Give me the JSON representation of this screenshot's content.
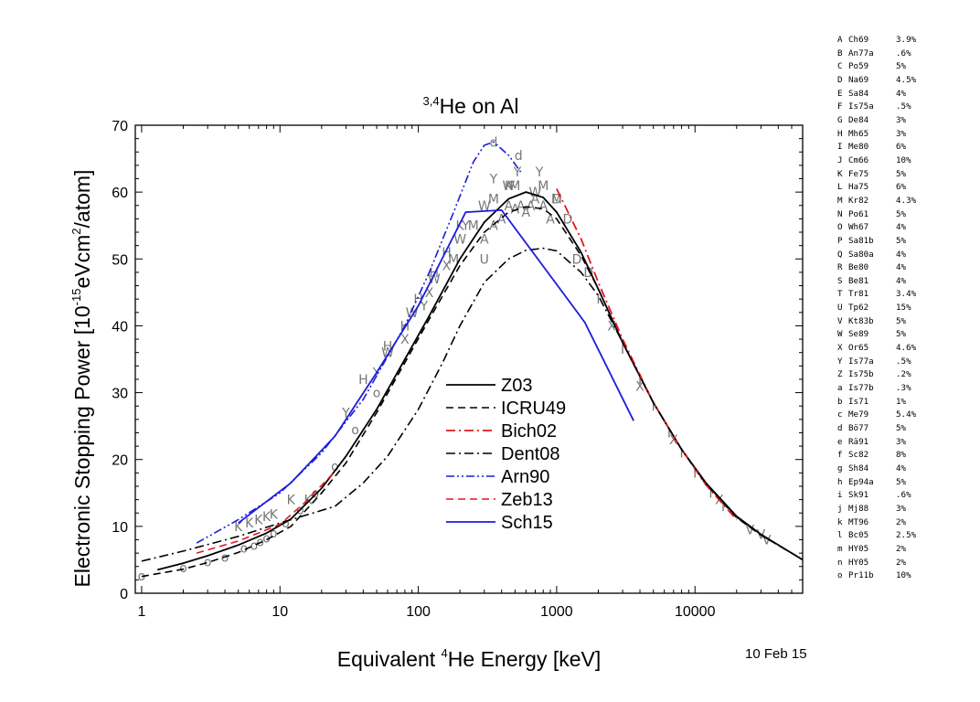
{
  "chart_data": {
    "type": "line",
    "title": {
      "prefix": "3,4",
      "main": "He on Al"
    },
    "xlabel": {
      "pre": "Equivalent ",
      "sup": "4",
      "post": "He Energy [keV]"
    },
    "ylabel": {
      "pre": "Electronic Stopping Power [10",
      "sup1": "-15",
      "mid": "eVcm",
      "sup2": "2",
      "post": "/atom]"
    },
    "x_scale": "log",
    "xlim": [
      0.9,
      60000
    ],
    "ylim": [
      0,
      70
    ],
    "x_ticks": [
      {
        "v": 1,
        "label": "1"
      },
      {
        "v": 10,
        "label": "10"
      },
      {
        "v": 100,
        "label": "100"
      },
      {
        "v": 1000,
        "label": "1000"
      },
      {
        "v": 10000,
        "label": "10000"
      }
    ],
    "y_ticks": [
      {
        "v": 0,
        "label": "0"
      },
      {
        "v": 10,
        "label": "10"
      },
      {
        "v": 20,
        "label": "20"
      },
      {
        "v": 30,
        "label": "30"
      },
      {
        "v": 40,
        "label": "40"
      },
      {
        "v": 50,
        "label": "50"
      },
      {
        "v": 60,
        "label": "60"
      },
      {
        "v": 70,
        "label": "70"
      }
    ],
    "legend_position": "center",
    "series": [
      {
        "name": "Z03",
        "color": "#000000",
        "dash": "",
        "width": 1.8,
        "x": [
          1.3,
          2,
          3,
          5,
          8,
          12,
          20,
          30,
          50,
          80,
          120,
          200,
          300,
          450,
          600,
          800,
          1000,
          1500,
          2000,
          3000,
          5000,
          8000,
          12000,
          20000,
          30000,
          50000,
          60000
        ],
        "y": [
          3.5,
          4.5,
          5.6,
          7.2,
          9,
          11.1,
          15.7,
          20.5,
          27.5,
          35,
          41.5,
          50,
          55.5,
          59,
          60,
          59.2,
          57,
          51,
          45.5,
          37.5,
          28.5,
          21.5,
          16.5,
          11.5,
          8.8,
          6,
          5
        ]
      },
      {
        "name": "ICRU49",
        "color": "#000000",
        "dash": "8,5",
        "width": 1.6,
        "x": [
          1,
          2,
          3,
          5,
          8,
          12,
          20,
          30,
          50,
          80,
          120,
          200,
          300,
          450,
          600,
          800,
          1000,
          1500,
          2000,
          3000,
          5000,
          8000,
          12000,
          20000,
          30000,
          50000,
          60000
        ],
        "y": [
          2.5,
          3.6,
          4.6,
          6.1,
          8,
          10,
          15,
          19.5,
          27,
          34.5,
          41,
          49,
          54,
          57,
          57.8,
          57.5,
          56,
          50.5,
          45.5,
          37.5,
          28.5,
          21.5,
          16.3,
          11.3,
          8.7,
          6,
          5
        ]
      },
      {
        "name": "Bich02",
        "color": "#e4161b",
        "dash": "10,4,2,4",
        "width": 1.8,
        "x": [
          1000,
          1500,
          2000,
          3000,
          5000,
          8000,
          12000,
          20000
        ],
        "y": [
          60.5,
          53,
          46.5,
          38,
          28.5,
          21.5,
          16.2,
          11
        ]
      },
      {
        "name": "Dent08",
        "color": "#000000",
        "dash": "10,4,2,4",
        "width": 1.6,
        "x": [
          1,
          2,
          5,
          10,
          25,
          40,
          60,
          100,
          150,
          200,
          300,
          450,
          600,
          800,
          1000,
          1500,
          2000,
          3000,
          5000,
          8000,
          12000,
          20000,
          30000,
          50000,
          60000
        ],
        "y": [
          4.8,
          6.3,
          8.5,
          10.5,
          13,
          16.5,
          20.5,
          27.5,
          34.5,
          40,
          46.5,
          50,
          51.3,
          51.6,
          51.2,
          48,
          44.5,
          37.5,
          28.5,
          21.5,
          16.4,
          11.4,
          8.7,
          6,
          5
        ]
      },
      {
        "name": "Arn90",
        "color": "#1c1cdc",
        "dash": "9,3,2,3,2,3",
        "width": 1.6,
        "x": [
          2.5,
          5,
          10,
          20,
          40,
          80,
          120,
          180,
          250,
          300,
          350,
          450,
          550
        ],
        "y": [
          7.5,
          11,
          15,
          21,
          29,
          40,
          48,
          57,
          64.5,
          67,
          67.5,
          65.5,
          63
        ]
      },
      {
        "name": "Zeb13",
        "color": "#e4161b",
        "dash": "8,5",
        "width": 1.6,
        "x": [
          2.5,
          5,
          10,
          15,
          25
        ],
        "y": [
          6,
          7.8,
          10.3,
          13.5,
          18.2
        ]
      },
      {
        "name": "Sch15",
        "color": "#1c1cdc",
        "dash": "",
        "width": 1.8,
        "x": [
          5,
          12,
          25,
          50,
          100,
          220,
          400,
          1600,
          3600
        ],
        "y": [
          10.5,
          16.5,
          23.5,
          33,
          43,
          57,
          57.3,
          40.5,
          25.8
        ]
      }
    ],
    "scatter_points": [
      {
        "label": "o",
        "x": [
          1,
          2,
          3,
          4,
          5.5,
          6.5,
          7.2,
          8,
          9,
          11,
          14,
          18,
          25,
          35,
          50
        ],
        "y": [
          2.6,
          3.8,
          4.7,
          5.4,
          6.8,
          7.2,
          7.7,
          8.3,
          9,
          10.5,
          12.5,
          15,
          19,
          24.5,
          30
        ]
      },
      {
        "label": "K",
        "x": [
          5,
          6,
          7,
          8,
          9,
          12,
          16,
          200,
          450
        ],
        "y": [
          10,
          10.5,
          11,
          11.5,
          11.8,
          14,
          14,
          55,
          61
        ]
      },
      {
        "label": "A",
        "x": [
          300,
          350,
          400,
          450,
          500,
          550,
          600,
          650,
          700,
          800,
          900
        ],
        "y": [
          53,
          55,
          56,
          58,
          57.5,
          58,
          57,
          58,
          59,
          58,
          56
        ]
      },
      {
        "label": "D",
        "x": [
          1000,
          1200,
          1400,
          1700
        ],
        "y": [
          59,
          56,
          50,
          48
        ]
      },
      {
        "label": "d",
        "x": [
          350,
          530
        ],
        "y": [
          67.5,
          65.5
        ]
      },
      {
        "label": "U",
        "x": [
          300
        ],
        "y": [
          50
        ]
      },
      {
        "label": "M",
        "x": [
          180,
          250,
          350,
          500,
          800,
          1000
        ],
        "y": [
          50,
          55,
          59,
          61,
          61,
          59
        ]
      },
      {
        "label": "H",
        "x": [
          40,
          60,
          80,
          100,
          130,
          160
        ],
        "y": [
          32,
          37,
          40,
          44,
          48,
          51
        ]
      },
      {
        "label": "W",
        "x": [
          60,
          90,
          130,
          200,
          300,
          450,
          700
        ],
        "y": [
          36,
          42,
          47,
          53,
          58,
          61,
          60
        ]
      },
      {
        "label": "I",
        "x": [
          2000,
          3000,
          4000,
          5000,
          6500,
          8000,
          10000,
          13000,
          16000
        ],
        "y": [
          44,
          36.5,
          32,
          28,
          24,
          21,
          18,
          15,
          13
        ]
      },
      {
        "label": "V",
        "x": [
          25000,
          30000,
          33000
        ],
        "y": [
          9.5,
          8.8,
          8
        ]
      },
      {
        "label": "X",
        "x": [
          80,
          120,
          160,
          2500,
          4000,
          7000,
          15000
        ],
        "y": [
          38,
          45,
          49,
          40,
          31,
          23,
          14
        ]
      },
      {
        "label": "Y",
        "x": [
          30,
          50,
          110,
          220,
          350,
          520,
          750
        ],
        "y": [
          27,
          33,
          43,
          55,
          62,
          63,
          63
        ]
      }
    ],
    "legend": [
      "Z03",
      "ICRU49",
      "Bich02",
      "Dent08",
      "Arn90",
      "Zeb13",
      "Sch15"
    ]
  },
  "references": [
    {
      "code": "A",
      "name": "Ch69",
      "unc": "3.9%"
    },
    {
      "code": "B",
      "name": "An77a",
      "unc": ".6%"
    },
    {
      "code": "C",
      "name": "Po59",
      "unc": "5%"
    },
    {
      "code": "D",
      "name": "Na69",
      "unc": "4.5%"
    },
    {
      "code": "E",
      "name": "Sa84",
      "unc": "4%"
    },
    {
      "code": "F",
      "name": "Is75a",
      "unc": ".5%"
    },
    {
      "code": "G",
      "name": "De84",
      "unc": "3%"
    },
    {
      "code": "H",
      "name": "Mh65",
      "unc": "3%"
    },
    {
      "code": "I",
      "name": "Me80",
      "unc": "6%"
    },
    {
      "code": "J",
      "name": "Cm66",
      "unc": "10%"
    },
    {
      "code": "K",
      "name": "Fe75",
      "unc": "5%"
    },
    {
      "code": "L",
      "name": "Ha75",
      "unc": "6%"
    },
    {
      "code": "M",
      "name": "Kr82",
      "unc": "4.3%"
    },
    {
      "code": "N",
      "name": "Po61",
      "unc": "5%"
    },
    {
      "code": "O",
      "name": "Wh67",
      "unc": "4%"
    },
    {
      "code": "P",
      "name": "Sa81b",
      "unc": "5%"
    },
    {
      "code": "Q",
      "name": "Sa80a",
      "unc": "4%"
    },
    {
      "code": "R",
      "name": "Be80",
      "unc": "4%"
    },
    {
      "code": "S",
      "name": "Be81",
      "unc": "4%"
    },
    {
      "code": "T",
      "name": "Tr81",
      "unc": "3.4%"
    },
    {
      "code": "U",
      "name": "Tp62",
      "unc": "15%"
    },
    {
      "code": "V",
      "name": "Kt83b",
      "unc": "5%"
    },
    {
      "code": "W",
      "name": "Se89",
      "unc": "5%"
    },
    {
      "code": "X",
      "name": "Or65",
      "unc": "4.6%"
    },
    {
      "code": "Y",
      "name": "Is77a",
      "unc": ".5%"
    },
    {
      "code": "Z",
      "name": "Is75b",
      "unc": ".2%"
    },
    {
      "code": "a",
      "name": "Is77b",
      "unc": ".3%"
    },
    {
      "code": "b",
      "name": "Is71",
      "unc": "1%"
    },
    {
      "code": "c",
      "name": "Me79",
      "unc": "5.4%"
    },
    {
      "code": "d",
      "name": "Bö77",
      "unc": "5%"
    },
    {
      "code": "e",
      "name": "Rä91",
      "unc": "3%"
    },
    {
      "code": "f",
      "name": "Sc82",
      "unc": "8%"
    },
    {
      "code": "g",
      "name": "Sh84",
      "unc": "4%"
    },
    {
      "code": "h",
      "name": "Ep94a",
      "unc": "5%"
    },
    {
      "code": "i",
      "name": "Sk91",
      "unc": ".6%"
    },
    {
      "code": "j",
      "name": "Mj88",
      "unc": "3%"
    },
    {
      "code": "k",
      "name": "MT96",
      "unc": "2%"
    },
    {
      "code": "l",
      "name": "Bc05",
      "unc": "2.5%"
    },
    {
      "code": "m",
      "name": "HY05",
      "unc": "2%"
    },
    {
      "code": "n",
      "name": "HY05",
      "unc": "2%"
    },
    {
      "code": "o",
      "name": "Pr11b",
      "unc": "10%"
    }
  ],
  "date_stamp": "10 Feb 15"
}
